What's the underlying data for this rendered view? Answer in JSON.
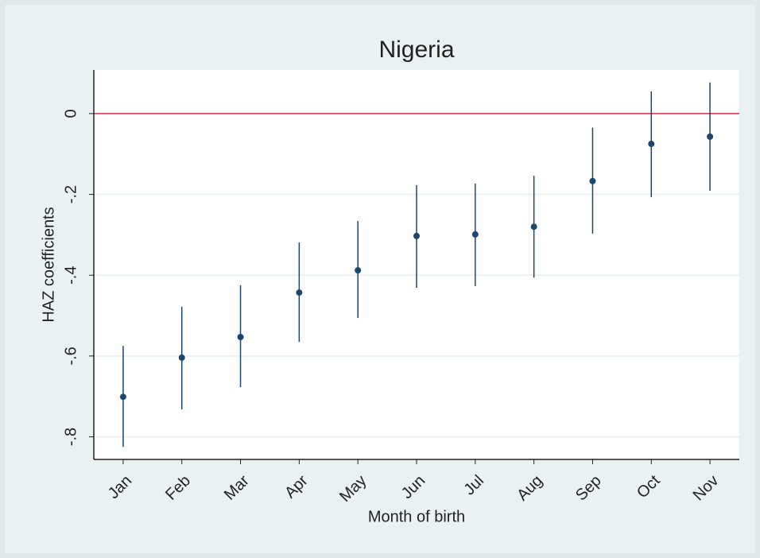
{
  "chart_data": {
    "type": "coefplot",
    "title": "Nigeria",
    "x_label": "Month of birth",
    "y_label": "HAZ coefficients",
    "categories": [
      "Jan",
      "Feb",
      "Mar",
      "Apr",
      "May",
      "Jun",
      "Jul",
      "Aug",
      "Sep",
      "Oct",
      "Nov"
    ],
    "series": [
      {
        "color": "#1a476f",
        "values": [
          -0.701,
          -0.604,
          -0.553,
          -0.443,
          -0.388,
          -0.303,
          -0.299,
          -0.28,
          -0.167,
          -0.075,
          -0.057
        ],
        "lower": [
          -0.825,
          -0.732,
          -0.677,
          -0.565,
          -0.506,
          -0.431,
          -0.427,
          -0.406,
          -0.297,
          -0.207,
          -0.191
        ],
        "upper": [
          -0.575,
          -0.478,
          -0.425,
          -0.319,
          -0.266,
          -0.177,
          -0.173,
          -0.154,
          -0.035,
          0.055,
          0.077
        ]
      }
    ],
    "reference_line": {
      "value": 0,
      "color": "#d62d4a"
    },
    "ylim": [
      -0.856,
      0.108
    ],
    "yticks": [
      0,
      {
        "value": -0.2,
        "label": "-.2"
      },
      {
        "value": -0.4,
        "label": "-.4"
      },
      {
        "value": -0.6,
        "label": "-.6"
      },
      {
        "value": -0.8,
        "label": "-.8"
      }
    ],
    "grid": true
  }
}
